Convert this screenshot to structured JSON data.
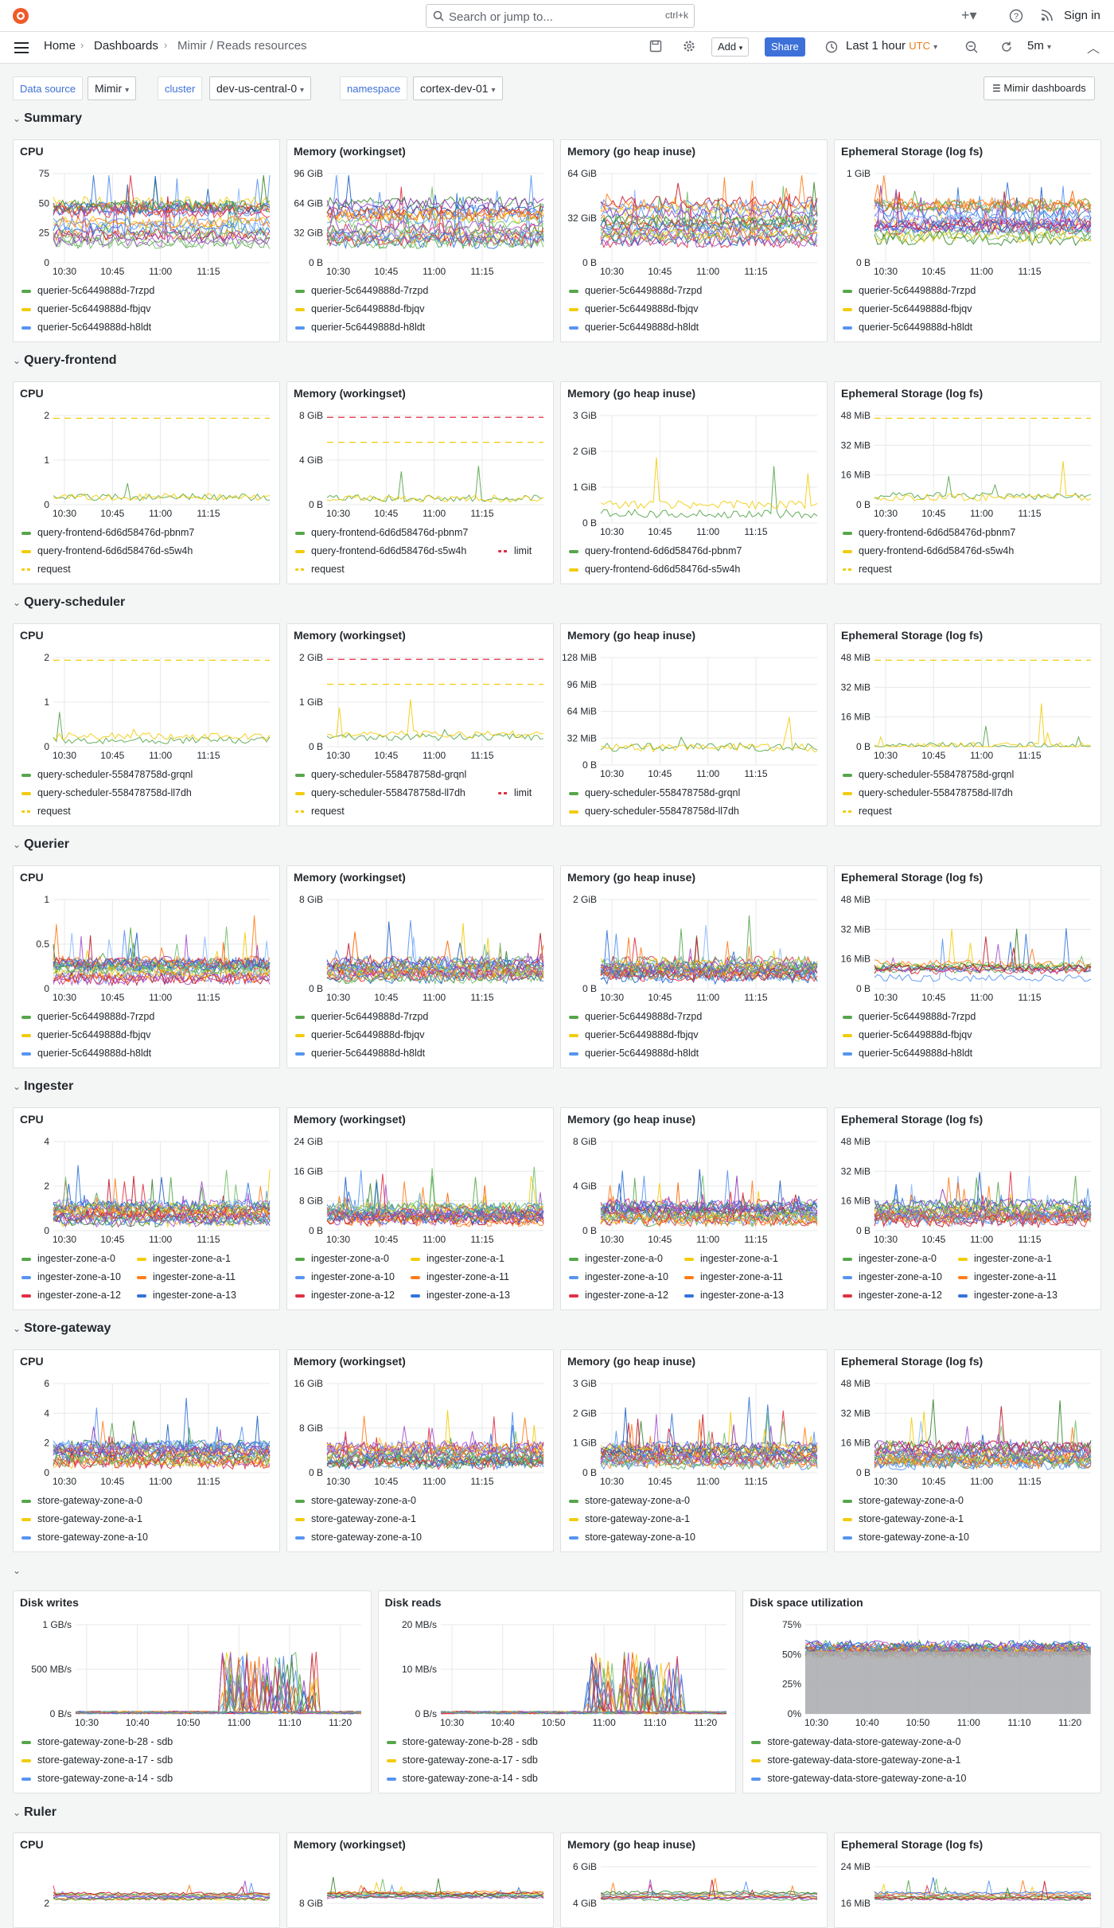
{
  "app": {
    "search_placeholder": "Search or jump to...",
    "search_shortcut": "ctrl+k",
    "sign_in": "Sign in",
    "breadcrumbs": [
      "Home",
      "Dashboards",
      "Mimir / Reads resources"
    ],
    "toolbar": {
      "add": "Add",
      "share": "Share",
      "time_range": "Last 1 hour",
      "timezone": "UTC",
      "refresh_interval": "5m"
    },
    "variables": [
      {
        "label": "Data source",
        "value": "Mimir"
      },
      {
        "label": "cluster",
        "value": "dev-us-central-0"
      },
      {
        "label": "namespace",
        "value": "cortex-dev-01"
      }
    ],
    "dashboards_link": "Mimir dashboards",
    "icons": [
      "grafana-logo-icon",
      "search-icon",
      "plus-icon",
      "help-icon",
      "rss-icon",
      "menu-icon",
      "save-icon",
      "gear-icon",
      "clock-icon",
      "zoom-out-icon",
      "refresh-icon",
      "collapse-icon"
    ],
    "colors": {
      "accent": "#3d71d9",
      "brand": "#f05a28",
      "utc": "#eb7b18",
      "series": [
        "#56a64b",
        "#f2cc0c",
        "#5794f2",
        "#ff7d1a",
        "#e02f44",
        "#3274d9",
        "#a352cc",
        "#73bf69",
        "#37872d",
        "#c4162a",
        "#1f60c4",
        "#8ab8ff",
        "#fa6400",
        "#8f3bb8"
      ]
    }
  },
  "rows": [
    {
      "title": "Summary",
      "panels": [
        {
          "title": "CPU",
          "y_ticks": [
            "75",
            "50",
            "25",
            "0"
          ],
          "x_ticks": [
            "10:30",
            "10:45",
            "11:00",
            "11:15"
          ],
          "legend": [
            {
              "name": "querier-5c6449888d-7rzpd"
            },
            {
              "name": "querier-5c6449888d-fbjqv"
            },
            {
              "name": "querier-5c6449888d-h8ldt"
            }
          ]
        },
        {
          "title": "Memory (workingset)",
          "y_ticks": [
            "96 GiB",
            "64 GiB",
            "32 GiB",
            "0 B"
          ],
          "x_ticks": [
            "10:30",
            "10:45",
            "11:00",
            "11:15"
          ],
          "legend": [
            {
              "name": "querier-5c6449888d-7rzpd"
            },
            {
              "name": "querier-5c6449888d-fbjqv"
            },
            {
              "name": "querier-5c6449888d-h8ldt"
            }
          ]
        },
        {
          "title": "Memory (go heap inuse)",
          "y_ticks": [
            "64 GiB",
            "32 GiB",
            "0 B"
          ],
          "x_ticks": [
            "10:30",
            "10:45",
            "11:00",
            "11:15"
          ],
          "legend": [
            {
              "name": "querier-5c6449888d-7rzpd"
            },
            {
              "name": "querier-5c6449888d-fbjqv"
            },
            {
              "name": "querier-5c6449888d-h8ldt"
            }
          ]
        },
        {
          "title": "Ephemeral Storage (log fs)",
          "y_ticks": [
            "1 GiB",
            "0 B"
          ],
          "x_ticks": [
            "10:30",
            "10:45",
            "11:00",
            "11:15"
          ],
          "legend": [
            {
              "name": "querier-5c6449888d-7rzpd"
            },
            {
              "name": "querier-5c6449888d-fbjqv"
            },
            {
              "name": "querier-5c6449888d-h8ldt"
            }
          ]
        }
      ]
    },
    {
      "title": "Query-frontend",
      "panels": [
        {
          "title": "CPU",
          "y_ticks": [
            "2",
            "1",
            "0"
          ],
          "x_ticks": [
            "10:30",
            "10:45",
            "11:00",
            "11:15"
          ],
          "legend": [
            {
              "name": "query-frontend-6d6d58476d-pbnm7"
            },
            {
              "name": "query-frontend-6d6d58476d-s5w4h"
            },
            {
              "name": "request",
              "dashed": true
            }
          ]
        },
        {
          "title": "Memory (workingset)",
          "y_ticks": [
            "8 GiB",
            "4 GiB",
            "0 B"
          ],
          "x_ticks": [
            "10:30",
            "10:45",
            "11:00",
            "11:15"
          ],
          "legend": [
            {
              "name": "query-frontend-6d6d58476d-pbnm7"
            },
            {
              "name": "query-frontend-6d6d58476d-s5w4h"
            },
            {
              "name": "limit",
              "dashed": true
            },
            {
              "name": "request",
              "dashed": true
            }
          ]
        },
        {
          "title": "Memory (go heap inuse)",
          "y_ticks": [
            "3 GiB",
            "2 GiB",
            "1 GiB",
            "0 B"
          ],
          "x_ticks": [
            "10:30",
            "10:45",
            "11:00",
            "11:15"
          ],
          "legend": [
            {
              "name": "query-frontend-6d6d58476d-pbnm7"
            },
            {
              "name": "query-frontend-6d6d58476d-s5w4h"
            }
          ]
        },
        {
          "title": "Ephemeral Storage (log fs)",
          "y_ticks": [
            "48 MiB",
            "32 MiB",
            "16 MiB",
            "0 B"
          ],
          "x_ticks": [
            "10:30",
            "10:45",
            "11:00",
            "11:15"
          ],
          "legend": [
            {
              "name": "query-frontend-6d6d58476d-pbnm7"
            },
            {
              "name": "query-frontend-6d6d58476d-s5w4h"
            },
            {
              "name": "request",
              "dashed": true
            }
          ]
        }
      ]
    },
    {
      "title": "Query-scheduler",
      "panels": [
        {
          "title": "CPU",
          "y_ticks": [
            "2",
            "1",
            "0"
          ],
          "x_ticks": [
            "10:30",
            "10:45",
            "11:00",
            "11:15"
          ],
          "legend": [
            {
              "name": "query-scheduler-558478758d-grqnl"
            },
            {
              "name": "query-scheduler-558478758d-ll7dh"
            },
            {
              "name": "request",
              "dashed": true
            }
          ]
        },
        {
          "title": "Memory (workingset)",
          "y_ticks": [
            "2 GiB",
            "1 GiB",
            "0 B"
          ],
          "x_ticks": [
            "10:30",
            "10:45",
            "11:00",
            "11:15"
          ],
          "legend": [
            {
              "name": "query-scheduler-558478758d-grqnl"
            },
            {
              "name": "query-scheduler-558478758d-ll7dh"
            },
            {
              "name": "limit",
              "dashed": true
            },
            {
              "name": "request",
              "dashed": true
            }
          ]
        },
        {
          "title": "Memory (go heap inuse)",
          "y_ticks": [
            "128 MiB",
            "96 MiB",
            "64 MiB",
            "32 MiB",
            "0 B"
          ],
          "x_ticks": [
            "10:30",
            "10:45",
            "11:00",
            "11:15"
          ],
          "legend": [
            {
              "name": "query-scheduler-558478758d-grqnl"
            },
            {
              "name": "query-scheduler-558478758d-ll7dh"
            }
          ]
        },
        {
          "title": "Ephemeral Storage (log fs)",
          "y_ticks": [
            "48 MiB",
            "32 MiB",
            "16 MiB",
            "0 B"
          ],
          "x_ticks": [
            "10:30",
            "10:45",
            "11:00",
            "11:15"
          ],
          "legend": [
            {
              "name": "query-scheduler-558478758d-grqnl"
            },
            {
              "name": "query-scheduler-558478758d-ll7dh"
            },
            {
              "name": "request",
              "dashed": true
            }
          ]
        }
      ]
    },
    {
      "title": "Querier",
      "panels": [
        {
          "title": "CPU",
          "y_ticks": [
            "1",
            "0.5",
            "0"
          ],
          "x_ticks": [
            "10:30",
            "10:45",
            "11:00",
            "11:15"
          ],
          "legend": [
            {
              "name": "querier-5c6449888d-7rzpd"
            },
            {
              "name": "querier-5c6449888d-fbjqv"
            },
            {
              "name": "querier-5c6449888d-h8ldt"
            }
          ]
        },
        {
          "title": "Memory (workingset)",
          "y_ticks": [
            "8 GiB",
            "0 B"
          ],
          "x_ticks": [
            "10:30",
            "10:45",
            "11:00",
            "11:15"
          ],
          "legend": [
            {
              "name": "querier-5c6449888d-7rzpd"
            },
            {
              "name": "querier-5c6449888d-fbjqv"
            },
            {
              "name": "querier-5c6449888d-h8ldt"
            }
          ]
        },
        {
          "title": "Memory (go heap inuse)",
          "y_ticks": [
            "2 GiB",
            "0 B"
          ],
          "x_ticks": [
            "10:30",
            "10:45",
            "11:00",
            "11:15"
          ],
          "legend": [
            {
              "name": "querier-5c6449888d-7rzpd"
            },
            {
              "name": "querier-5c6449888d-fbjqv"
            },
            {
              "name": "querier-5c6449888d-h8ldt"
            }
          ]
        },
        {
          "title": "Ephemeral Storage (log fs)",
          "y_ticks": [
            "48 MiB",
            "32 MiB",
            "16 MiB",
            "0 B"
          ],
          "x_ticks": [
            "10:30",
            "10:45",
            "11:00",
            "11:15"
          ],
          "legend": [
            {
              "name": "querier-5c6449888d-7rzpd"
            },
            {
              "name": "querier-5c6449888d-fbjqv"
            },
            {
              "name": "querier-5c6449888d-h8ldt"
            }
          ]
        }
      ]
    },
    {
      "title": "Ingester",
      "panels": [
        {
          "title": "CPU",
          "y_ticks": [
            "4",
            "2",
            "0"
          ],
          "x_ticks": [
            "10:30",
            "10:45",
            "11:00",
            "11:15"
          ],
          "legend": [
            {
              "name": "ingester-zone-a-0"
            },
            {
              "name": "ingester-zone-a-1"
            },
            {
              "name": "ingester-zone-a-10"
            },
            {
              "name": "ingester-zone-a-11"
            },
            {
              "name": "ingester-zone-a-12"
            },
            {
              "name": "ingester-zone-a-13"
            }
          ]
        },
        {
          "title": "Memory (workingset)",
          "y_ticks": [
            "24 GiB",
            "16 GiB",
            "8 GiB",
            "0 B"
          ],
          "x_ticks": [
            "10:30",
            "10:45",
            "11:00",
            "11:15"
          ],
          "legend": [
            {
              "name": "ingester-zone-a-0"
            },
            {
              "name": "ingester-zone-a-1"
            },
            {
              "name": "ingester-zone-a-10"
            },
            {
              "name": "ingester-zone-a-11"
            },
            {
              "name": "ingester-zone-a-12"
            },
            {
              "name": "ingester-zone-a-13"
            }
          ]
        },
        {
          "title": "Memory (go heap inuse)",
          "y_ticks": [
            "8 GiB",
            "4 GiB",
            "0 B"
          ],
          "x_ticks": [
            "10:30",
            "10:45",
            "11:00",
            "11:15"
          ],
          "legend": [
            {
              "name": "ingester-zone-a-0"
            },
            {
              "name": "ingester-zone-a-1"
            },
            {
              "name": "ingester-zone-a-10"
            },
            {
              "name": "ingester-zone-a-11"
            },
            {
              "name": "ingester-zone-a-12"
            },
            {
              "name": "ingester-zone-a-13"
            }
          ]
        },
        {
          "title": "Ephemeral Storage (log fs)",
          "y_ticks": [
            "48 MiB",
            "32 MiB",
            "16 MiB",
            "0 B"
          ],
          "x_ticks": [
            "10:30",
            "10:45",
            "11:00",
            "11:15"
          ],
          "legend": [
            {
              "name": "ingester-zone-a-0"
            },
            {
              "name": "ingester-zone-a-1"
            },
            {
              "name": "ingester-zone-a-10"
            },
            {
              "name": "ingester-zone-a-11"
            },
            {
              "name": "ingester-zone-a-12"
            },
            {
              "name": "ingester-zone-a-13"
            }
          ]
        }
      ]
    },
    {
      "title": "Store-gateway",
      "panels": [
        {
          "title": "CPU",
          "y_ticks": [
            "6",
            "4",
            "2",
            "0"
          ],
          "x_ticks": [
            "10:30",
            "10:45",
            "11:00",
            "11:15"
          ],
          "legend": [
            {
              "name": "store-gateway-zone-a-0"
            },
            {
              "name": "store-gateway-zone-a-1"
            },
            {
              "name": "store-gateway-zone-a-10"
            }
          ]
        },
        {
          "title": "Memory (workingset)",
          "y_ticks": [
            "16 GiB",
            "8 GiB",
            "0 B"
          ],
          "x_ticks": [
            "10:30",
            "10:45",
            "11:00",
            "11:15"
          ],
          "legend": [
            {
              "name": "store-gateway-zone-a-0"
            },
            {
              "name": "store-gateway-zone-a-1"
            },
            {
              "name": "store-gateway-zone-a-10"
            }
          ]
        },
        {
          "title": "Memory (go heap inuse)",
          "y_ticks": [
            "3 GiB",
            "2 GiB",
            "1 GiB",
            "0 B"
          ],
          "x_ticks": [
            "10:30",
            "10:45",
            "11:00",
            "11:15"
          ],
          "legend": [
            {
              "name": "store-gateway-zone-a-0"
            },
            {
              "name": "store-gateway-zone-a-1"
            },
            {
              "name": "store-gateway-zone-a-10"
            }
          ]
        },
        {
          "title": "Ephemeral Storage (log fs)",
          "y_ticks": [
            "48 MiB",
            "32 MiB",
            "16 MiB",
            "0 B"
          ],
          "x_ticks": [
            "10:30",
            "10:45",
            "11:00",
            "11:15"
          ],
          "legend": [
            {
              "name": "store-gateway-zone-a-0"
            },
            {
              "name": "store-gateway-zone-a-1"
            },
            {
              "name": "store-gateway-zone-a-10"
            }
          ]
        }
      ]
    },
    {
      "title": "",
      "panels": [
        {
          "title": "Disk writes",
          "y_ticks": [
            "1 GB/s",
            "500 MB/s",
            "0 B/s"
          ],
          "x_ticks": [
            "10:30",
            "10:40",
            "10:50",
            "11:00",
            "11:10",
            "11:20"
          ],
          "legend": [
            {
              "name": "store-gateway-zone-b-28 - sdb"
            },
            {
              "name": "store-gateway-zone-a-17 - sdb"
            },
            {
              "name": "store-gateway-zone-a-14 - sdb"
            }
          ]
        },
        {
          "title": "Disk reads",
          "y_ticks": [
            "20 MB/s",
            "10 MB/s",
            "0 B/s"
          ],
          "x_ticks": [
            "10:30",
            "10:40",
            "10:50",
            "11:00",
            "11:10",
            "11:20"
          ],
          "legend": [
            {
              "name": "store-gateway-zone-b-28 - sdb"
            },
            {
              "name": "store-gateway-zone-a-17 - sdb"
            },
            {
              "name": "store-gateway-zone-a-14 - sdb"
            }
          ]
        },
        {
          "title": "Disk space utilization",
          "y_ticks": [
            "75%",
            "50%",
            "25%",
            "0%"
          ],
          "x_ticks": [
            "10:30",
            "10:40",
            "10:50",
            "11:00",
            "11:10",
            "11:20"
          ],
          "legend": [
            {
              "name": "store-gateway-data-store-gateway-zone-a-0"
            },
            {
              "name": "store-gateway-data-store-gateway-zone-a-1"
            },
            {
              "name": "store-gateway-data-store-gateway-zone-a-10"
            }
          ]
        }
      ]
    },
    {
      "title": "Ruler",
      "panels": [
        {
          "title": "CPU",
          "y_ticks": [
            "2"
          ],
          "x_ticks": [],
          "legend": []
        },
        {
          "title": "Memory (workingset)",
          "y_ticks": [
            "8 GiB"
          ],
          "x_ticks": [],
          "legend": []
        },
        {
          "title": "Memory (go heap inuse)",
          "y_ticks": [
            "6 GiB",
            "4 GiB"
          ],
          "x_ticks": [],
          "legend": []
        },
        {
          "title": "Ephemeral Storage (log fs)",
          "y_ticks": [
            "24 MiB",
            "16 MiB"
          ],
          "x_ticks": [],
          "legend": []
        }
      ]
    }
  ]
}
